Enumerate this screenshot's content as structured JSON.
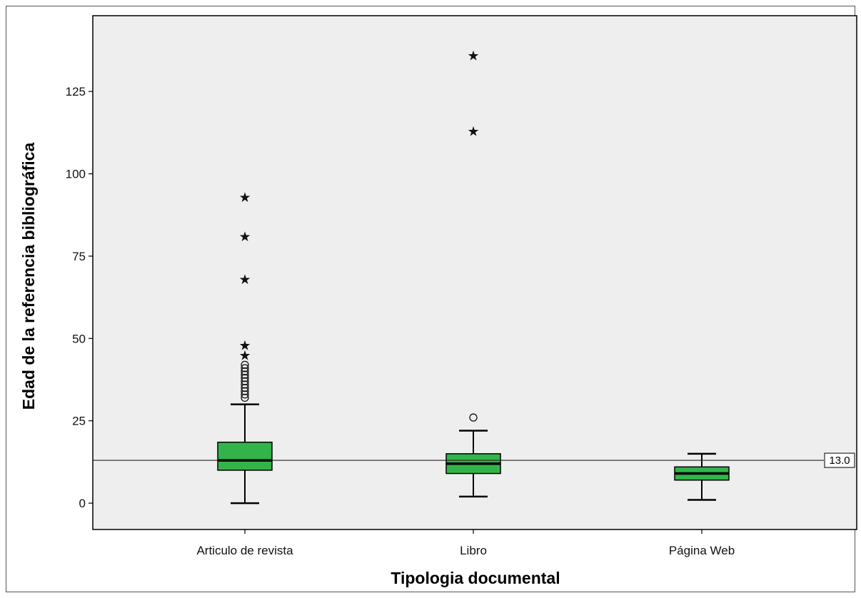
{
  "chart_data": {
    "type": "box",
    "xlabel": "Tipologia documental",
    "ylabel": "Edad de la referencia bibliográfica",
    "ylim": [
      -8,
      148
    ],
    "yticks": [
      0,
      25,
      50,
      75,
      100,
      125
    ],
    "grid": false,
    "reference_line": {
      "value": 13.0,
      "label": "13.0"
    },
    "colors": {
      "box": "#33b44a",
      "plot_bg": "#eeeeee",
      "line": "#000000"
    },
    "categories": [
      "Articulo de revista",
      "Libro",
      "Página Web"
    ],
    "boxes": [
      {
        "category": "Articulo de revista",
        "whisker_low": 0,
        "q1": 10,
        "median": 13,
        "q3": 18.5,
        "whisker_high": 30,
        "outliers_circle": [
          32,
          33,
          34,
          35,
          36,
          37,
          38,
          39,
          40,
          41,
          42
        ],
        "outliers_star": [
          45,
          48,
          68,
          81,
          93
        ]
      },
      {
        "category": "Libro",
        "whisker_low": 2,
        "q1": 9,
        "median": 12,
        "q3": 15,
        "whisker_high": 22,
        "outliers_circle": [
          26
        ],
        "outliers_star": [
          113,
          136
        ]
      },
      {
        "category": "Página Web",
        "whisker_low": 1,
        "q1": 7,
        "median": 9,
        "q3": 11,
        "whisker_high": 15,
        "outliers_circle": [],
        "outliers_star": []
      }
    ]
  }
}
